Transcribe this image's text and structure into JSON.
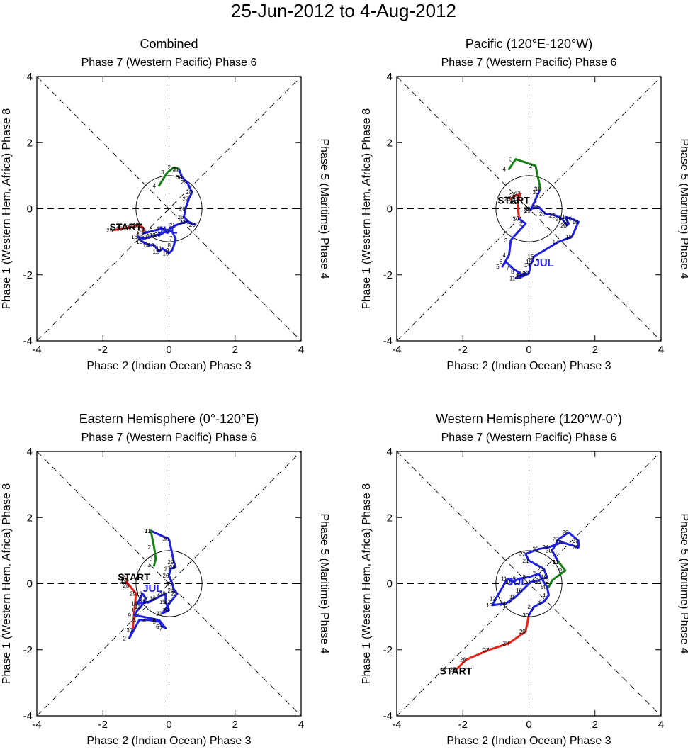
{
  "title": "25-Jun-2012 to 4-Aug-2012",
  "axis_labels": {
    "top": "Phase 7 (Western Pacific) Phase 6",
    "bottom": "Phase 2 (Indian Ocean) Phase 3",
    "left": "Phase 1 (Western Hem, Africa) Phase 8",
    "right": "Phase 5 (Maritime) Phase 4"
  },
  "colors": {
    "june": "#e8211a",
    "july": "#1f20e0",
    "august": "#167f16"
  },
  "chart_data": [
    {
      "type": "line",
      "title": "Combined",
      "xlabel": "Phase 2 (Indian Ocean) Phase 3",
      "ylabel": "Phase 1 (Western Hem, Africa) Phase 8",
      "xlim": [
        -4,
        4
      ],
      "ylim": [
        -4,
        4
      ],
      "xticks": [
        -4,
        -2,
        0,
        2,
        4
      ],
      "yticks": [
        -4,
        -2,
        0,
        2,
        4
      ],
      "start_label": "START",
      "start_point": [
        -1.8,
        -0.65
      ],
      "month_label": "JUL",
      "month_point": [
        -0.35,
        -0.75
      ],
      "series": [
        {
          "name": "June",
          "color": "#e8211a",
          "days": [
            "25",
            "26",
            "27",
            "28",
            "29",
            "30"
          ],
          "points": [
            [
              -1.7,
              -0.65
            ],
            [
              -1.4,
              -0.6
            ],
            [
              -1.1,
              -0.55
            ],
            [
              -0.9,
              -0.5
            ],
            [
              -0.75,
              -0.6
            ],
            [
              -0.8,
              -0.75
            ]
          ]
        },
        {
          "name": "July",
          "color": "#1f20e0",
          "days": [
            "1",
            "2",
            "3",
            "4",
            "5",
            "6",
            "7",
            "8",
            "9",
            "10",
            "11",
            "12",
            "13",
            "14",
            "15",
            "16",
            "17",
            "18",
            "19",
            "20",
            "21",
            "22",
            "23",
            "24",
            "25",
            "26",
            "27",
            "28",
            "29",
            "30",
            "31"
          ],
          "points": [
            [
              -0.8,
              -0.75
            ],
            [
              -0.6,
              -0.7
            ],
            [
              -0.4,
              -0.65
            ],
            [
              -0.2,
              -0.6
            ],
            [
              -0.05,
              -0.65
            ],
            [
              0.1,
              -0.7
            ],
            [
              0.2,
              -0.9
            ],
            [
              0.15,
              -1.1
            ],
            [
              0.1,
              -1.25
            ],
            [
              0.0,
              -1.35
            ],
            [
              -0.2,
              -1.2
            ],
            [
              -0.3,
              -1.3
            ],
            [
              -0.45,
              -1.1
            ],
            [
              -0.6,
              -1.1
            ],
            [
              -0.8,
              -1.0
            ],
            [
              -0.95,
              -0.85
            ],
            [
              -0.75,
              -0.9
            ],
            [
              -0.55,
              -0.85
            ],
            [
              -0.4,
              -0.8
            ],
            [
              -0.25,
              -0.78
            ],
            [
              0.2,
              -0.5
            ],
            [
              0.5,
              -0.4
            ],
            [
              0.8,
              -0.48
            ],
            [
              0.6,
              -0.4
            ],
            [
              0.45,
              -0.25
            ],
            [
              0.5,
              0.0
            ],
            [
              0.6,
              0.3
            ],
            [
              0.7,
              0.5
            ],
            [
              0.55,
              0.8
            ],
            [
              0.4,
              0.95
            ],
            [
              0.3,
              1.2
            ]
          ]
        },
        {
          "name": "August",
          "color": "#167f16",
          "days": [
            "1",
            "2",
            "3",
            "4"
          ],
          "points": [
            [
              0.3,
              1.2
            ],
            [
              0.15,
              1.25
            ],
            [
              -0.05,
              1.1
            ],
            [
              -0.3,
              0.7
            ]
          ]
        }
      ]
    },
    {
      "type": "line",
      "title": "Pacific (120°E-120°W)",
      "xlabel": "Phase 2 (Indian Ocean) Phase 3",
      "ylabel": "Phase 1 (Western Hem, Africa) Phase 8",
      "xlim": [
        -4,
        4
      ],
      "ylim": [
        -4,
        4
      ],
      "xticks": [
        -4,
        -2,
        0,
        2,
        4
      ],
      "yticks": [
        -4,
        -2,
        0,
        2,
        4
      ],
      "start_label": "START",
      "start_point": [
        -0.95,
        0.15
      ],
      "month_label": "JUL",
      "month_point": [
        0.15,
        -1.75
      ],
      "series": [
        {
          "name": "June",
          "color": "#e8211a",
          "days": [
            "25",
            "26",
            "27",
            "28",
            "29",
            "30"
          ],
          "points": [
            [
              -0.55,
              0.3
            ],
            [
              -0.4,
              0.4
            ],
            [
              -0.25,
              0.45
            ],
            [
              -0.3,
              0.35
            ],
            [
              -0.35,
              0.2
            ],
            [
              -0.3,
              -0.3
            ]
          ]
        },
        {
          "name": "July",
          "color": "#1f20e0",
          "days": [
            "1",
            "2",
            "3",
            "4",
            "5",
            "6",
            "7",
            "8",
            "9",
            "10",
            "11",
            "12",
            "13",
            "14",
            "15",
            "16",
            "17",
            "18",
            "19",
            "20",
            "21",
            "22",
            "23",
            "24",
            "25",
            "26",
            "27",
            "28",
            "29",
            "30",
            "31"
          ],
          "points": [
            [
              -0.3,
              -0.3
            ],
            [
              -0.1,
              -0.45
            ],
            [
              -0.55,
              -0.95
            ],
            [
              -0.6,
              -1.4
            ],
            [
              -0.8,
              -1.75
            ],
            [
              -0.7,
              -1.6
            ],
            [
              -0.5,
              -1.8
            ],
            [
              -0.35,
              -1.9
            ],
            [
              -0.2,
              -2.0
            ],
            [
              -0.1,
              -1.95
            ],
            [
              -0.4,
              -2.1
            ],
            [
              -0.2,
              -2.05
            ],
            [
              0.0,
              -1.95
            ],
            [
              0.05,
              -1.7
            ],
            [
              0.1,
              -1.6
            ],
            [
              0.15,
              -1.45
            ],
            [
              0.9,
              -1.0
            ],
            [
              1.3,
              -0.85
            ],
            [
              1.5,
              -0.4
            ],
            [
              1.3,
              -0.3
            ],
            [
              1.1,
              -0.25
            ],
            [
              1.2,
              -0.45
            ],
            [
              1.15,
              -0.5
            ],
            [
              1.0,
              -0.3
            ],
            [
              0.8,
              -0.2
            ],
            [
              0.5,
              -0.15
            ],
            [
              0.3,
              0.05
            ],
            [
              0.05,
              0.0
            ],
            [
              0.05,
              -0.05
            ],
            [
              0.3,
              0.5
            ],
            [
              0.35,
              0.6
            ]
          ]
        },
        {
          "name": "August",
          "color": "#167f16",
          "days": [
            "1",
            "2",
            "3",
            "4"
          ],
          "points": [
            [
              0.35,
              0.6
            ],
            [
              0.2,
              1.3
            ],
            [
              -0.4,
              1.5
            ],
            [
              -0.6,
              1.2
            ]
          ]
        }
      ]
    },
    {
      "type": "line",
      "title": "Eastern Hemisphere (0°-120°E)",
      "xlabel": "Phase 2 (Indian Ocean) Phase 3",
      "ylabel": "Phase 1 (Western Hem, Africa) Phase 8",
      "xlim": [
        -4,
        4
      ],
      "ylim": [
        -4,
        4
      ],
      "xticks": [
        -4,
        -2,
        0,
        2,
        4
      ],
      "yticks": [
        -4,
        -2,
        0,
        2,
        4
      ],
      "start_label": "START",
      "start_point": [
        -1.55,
        0.1
      ],
      "month_label": "JUL",
      "month_point": [
        -0.8,
        -0.25
      ],
      "series": [
        {
          "name": "June",
          "color": "#e8211a",
          "days": [
            "25",
            "26",
            "27",
            "28",
            "29",
            "30"
          ],
          "points": [
            [
              -1.3,
              0.15
            ],
            [
              -1.25,
              0.1
            ],
            [
              -1.3,
              0.05
            ],
            [
              -1.2,
              -0.05
            ],
            [
              -1.0,
              -0.3
            ],
            [
              -1.1,
              -1.4
            ]
          ]
        },
        {
          "name": "July",
          "color": "#1f20e0",
          "days": [
            "1",
            "2",
            "3",
            "4",
            "5",
            "6",
            "7",
            "8",
            "9",
            "10",
            "11",
            "12",
            "13",
            "14",
            "15",
            "16",
            "17",
            "18",
            "19",
            "20",
            "21",
            "22",
            "23",
            "24",
            "25",
            "26",
            "27",
            "28",
            "29",
            "30",
            "31"
          ],
          "points": [
            [
              -1.1,
              -1.4
            ],
            [
              -1.2,
              -1.65
            ],
            [
              -0.9,
              -1.1
            ],
            [
              -0.6,
              -1.1
            ],
            [
              -0.3,
              -1.15
            ],
            [
              -0.2,
              -1.3
            ],
            [
              -0.1,
              -1.35
            ],
            [
              -0.3,
              -1.1
            ],
            [
              -1.05,
              -0.95
            ],
            [
              -0.95,
              -0.8
            ],
            [
              -0.85,
              -0.7
            ],
            [
              -0.7,
              -0.45
            ],
            [
              -0.8,
              -0.3
            ],
            [
              -0.95,
              -0.6
            ],
            [
              -0.6,
              -0.55
            ],
            [
              -0.4,
              -0.45
            ],
            [
              -0.3,
              -0.4
            ],
            [
              -0.1,
              -0.3
            ],
            [
              -0.1,
              -0.55
            ],
            [
              0.0,
              -0.8
            ],
            [
              -0.2,
              -0.9
            ],
            [
              0.05,
              -0.55
            ],
            [
              0.25,
              -0.3
            ],
            [
              0.15,
              -0.2
            ],
            [
              0.1,
              0.0
            ],
            [
              0.0,
              0.25
            ],
            [
              0.05,
              0.45
            ],
            [
              0.2,
              0.5
            ],
            [
              0.15,
              0.65
            ],
            [
              0.0,
              1.35
            ],
            [
              -0.55,
              1.6
            ]
          ]
        },
        {
          "name": "August",
          "color": "#167f16",
          "days": [
            "1",
            "2",
            "3",
            "4"
          ],
          "points": [
            [
              -0.55,
              1.6
            ],
            [
              -0.45,
              1.1
            ],
            [
              -0.4,
              0.75
            ],
            [
              -0.45,
              0.55
            ]
          ]
        }
      ]
    },
    {
      "type": "line",
      "title": "Western Hemisphere (120°W-0°)",
      "xlabel": "Phase 2 (Indian Ocean) Phase 3",
      "ylabel": "Phase 1 (Western Hem, Africa) Phase 8",
      "xlim": [
        -4,
        4
      ],
      "ylim": [
        -4,
        4
      ],
      "xticks": [
        -4,
        -2,
        0,
        2,
        4
      ],
      "yticks": [
        -4,
        -2,
        0,
        2,
        4
      ],
      "start_label": "START",
      "start_point": [
        -2.7,
        -2.75
      ],
      "month_label": "JUL",
      "month_point": [
        -0.65,
        -0.05
      ],
      "series": [
        {
          "name": "June",
          "color": "#e8211a",
          "days": [
            "25",
            "26",
            "27",
            "28",
            "29",
            "30"
          ],
          "points": [
            [
              -2.2,
              -2.6
            ],
            [
              -1.9,
              -2.3
            ],
            [
              -1.2,
              -2.0
            ],
            [
              -0.6,
              -1.8
            ],
            [
              -0.1,
              -1.45
            ],
            [
              0.0,
              -0.95
            ]
          ]
        },
        {
          "name": "July",
          "color": "#1f20e0",
          "days": [
            "1",
            "2",
            "3",
            "4",
            "5",
            "6",
            "7",
            "8",
            "9",
            "10",
            "11",
            "12",
            "13",
            "14",
            "15",
            "16",
            "17",
            "18",
            "19",
            "20",
            "21",
            "22",
            "23",
            "24",
            "25",
            "26",
            "27",
            "28",
            "29",
            "30",
            "31"
          ],
          "points": [
            [
              0.0,
              -0.95
            ],
            [
              0.15,
              -0.7
            ],
            [
              0.45,
              -0.55
            ],
            [
              0.6,
              -0.35
            ],
            [
              0.55,
              -0.1
            ],
            [
              0.45,
              0.05
            ],
            [
              0.3,
              0.3
            ],
            [
              0.0,
              0.2
            ],
            [
              -0.3,
              0.15
            ],
            [
              -0.5,
              0.05
            ],
            [
              -0.65,
              0.15
            ],
            [
              -1.0,
              -0.45
            ],
            [
              -1.1,
              -0.65
            ],
            [
              -0.7,
              -0.6
            ],
            [
              -0.4,
              -0.4
            ],
            [
              -0.2,
              -0.2
            ],
            [
              0.05,
              0.05
            ],
            [
              0.3,
              0.1
            ],
            [
              0.55,
              0.2
            ],
            [
              0.45,
              0.45
            ],
            [
              0.0,
              0.7
            ],
            [
              -0.1,
              0.9
            ],
            [
              0.3,
              1.05
            ],
            [
              0.6,
              1.1
            ],
            [
              1.0,
              1.25
            ],
            [
              1.5,
              1.1
            ],
            [
              1.5,
              1.3
            ],
            [
              1.2,
              1.55
            ],
            [
              0.9,
              1.35
            ],
            [
              0.7,
              1.0
            ],
            [
              0.9,
              0.65
            ]
          ]
        },
        {
          "name": "August",
          "color": "#167f16",
          "days": [
            "1",
            "2",
            "3",
            "4"
          ],
          "points": [
            [
              0.9,
              0.65
            ],
            [
              1.1,
              0.4
            ],
            [
              0.7,
              0.1
            ],
            [
              0.6,
              -0.1
            ]
          ]
        }
      ]
    }
  ]
}
